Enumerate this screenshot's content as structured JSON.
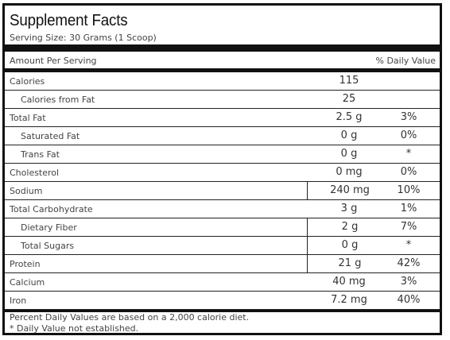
{
  "title": "Supplement Facts",
  "serving_size": "Serving Size: 30 Grams (1 Scoop)",
  "header": {
    "amount_per_serving": "Amount Per Serving",
    "daily_value": "% Daily Value"
  },
  "rows": [
    {
      "label": "Calories",
      "amount": "115",
      "pct": ""
    },
    {
      "label": "Calories from Fat",
      "amount": "25",
      "pct": ""
    },
    {
      "label": "Total Fat",
      "amount": "2.5 g",
      "pct": "3%"
    },
    {
      "label": "Saturated Fat",
      "amount": "0 g",
      "pct": "0%"
    },
    {
      "label": "Trans Fat",
      "amount": "0 g",
      "pct": "*"
    },
    {
      "label": "Cholesterol",
      "amount": "0 mg",
      "pct": "0%"
    },
    {
      "label": "Sodium",
      "amount": "240 mg",
      "pct": "10%"
    },
    {
      "label": "Total Carbohydrate",
      "amount": "3 g",
      "pct": "1%"
    },
    {
      "label": "Dietary Fiber",
      "amount": "2 g",
      "pct": "7%"
    },
    {
      "label": "Total Sugars",
      "amount": "0 g",
      "pct": "*"
    },
    {
      "label": "Protein",
      "amount": "21 g",
      "pct": "42%"
    },
    {
      "label": "Calcium",
      "amount": "40 mg",
      "pct": "3%"
    },
    {
      "label": "Iron",
      "amount": "7.2 mg",
      "pct": "40%"
    }
  ],
  "footnote_1": "Percent Daily Values are based on a 2,000 calorie diet.",
  "footnote_2": "* Daily Value not established."
}
